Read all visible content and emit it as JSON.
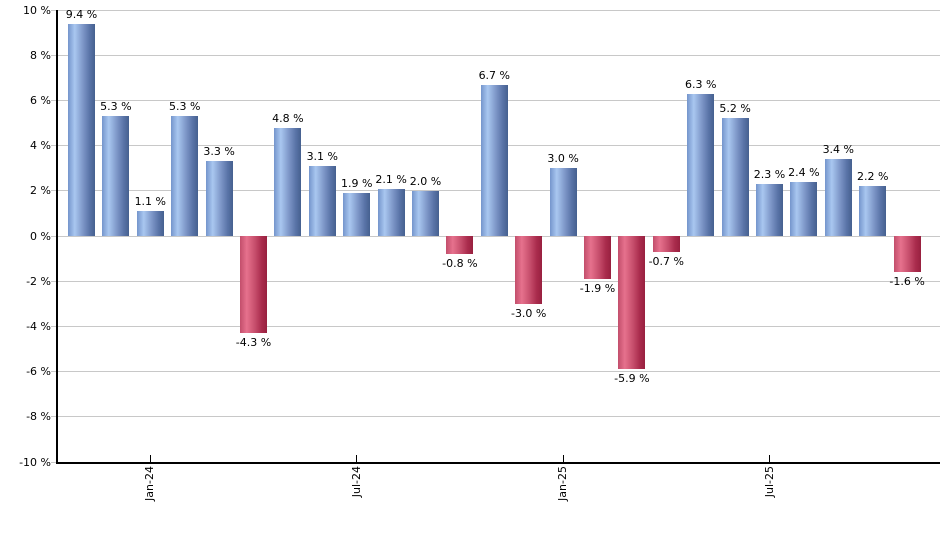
{
  "chart_data": {
    "type": "bar",
    "title": "",
    "xlabel": "",
    "ylabel": "",
    "grid": true,
    "legend": false,
    "ylim": [
      -10,
      10
    ],
    "values": [
      9.4,
      5.3,
      1.1,
      5.3,
      3.3,
      -4.3,
      4.8,
      3.1,
      1.9,
      2.1,
      2.0,
      -0.8,
      6.7,
      -3.0,
      3.0,
      -1.9,
      -5.9,
      -0.7,
      6.3,
      5.2,
      2.3,
      2.4,
      3.4,
      2.2,
      -1.6
    ],
    "value_labels": [
      "9.4 %",
      "5.3 %",
      "1.1 %",
      "5.3 %",
      "3.3 %",
      "-4.3 %",
      "4.8 %",
      "3.1 %",
      "1.9 %",
      "2.1 %",
      "2.0 %",
      "-0.8 %",
      "6.7 %",
      "-3.0 %",
      "3.0 %",
      "-1.9 %",
      "-5.9 %",
      "-0.7 %",
      "6.3 %",
      "5.2 %",
      "2.3 %",
      "2.4 %",
      "3.4 %",
      "2.2 %",
      "-1.6 %"
    ],
    "y_ticks": [
      {
        "value": 10,
        "label": "10 %"
      },
      {
        "value": 8,
        "label": "8 %"
      },
      {
        "value": 6,
        "label": "6 %"
      },
      {
        "value": 4,
        "label": "4 %"
      },
      {
        "value": 2,
        "label": "2 %"
      },
      {
        "value": 0,
        "label": "0 %"
      },
      {
        "value": -2,
        "label": "-2 %"
      },
      {
        "value": -4,
        "label": "-4 %"
      },
      {
        "value": -6,
        "label": "-6 %"
      },
      {
        "value": -8,
        "label": "-8 %"
      },
      {
        "value": -10,
        "label": "-10 %"
      }
    ],
    "x_ticks": [
      {
        "bar_index": 2,
        "label": "Jan-24"
      },
      {
        "bar_index": 8,
        "label": "Jul-24"
      },
      {
        "bar_index": 14,
        "label": "Jan-25"
      },
      {
        "bar_index": 20,
        "label": "Jul-25"
      }
    ],
    "colors": {
      "positive_bar_light": "#a9c7f0",
      "positive_bar_dark": "#45608f",
      "negative_bar_light": "#e6718d",
      "negative_bar_dark": "#98203f",
      "gridline": "#c8c8c8",
      "axis": "#000000",
      "text": "#000000",
      "background": "#ffffff"
    }
  }
}
